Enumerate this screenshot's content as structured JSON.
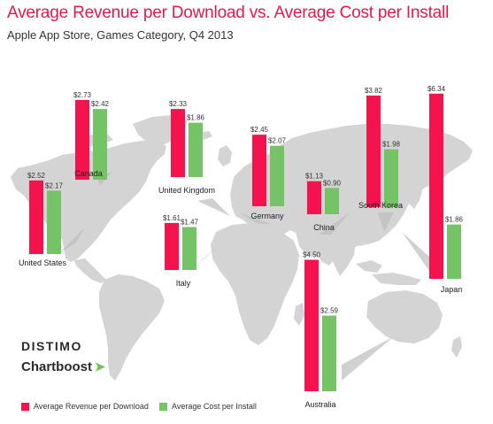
{
  "title": "Average Revenue per Download vs. Average Cost per Install",
  "subtitle": "Apple App Store, Games Category, Q4 2013",
  "colors": {
    "revenue": "#f5134d",
    "cost": "#74c465",
    "map": "#d4d4d4",
    "title": "#e8184a"
  },
  "brands": {
    "distimo": "DISTIMO",
    "chartboost": "Chartboost",
    "chartboost_icon": "leaf-icon"
  },
  "chart_data": {
    "type": "bar",
    "categories": [
      "Canada",
      "United Kingdom",
      "Germany",
      "China",
      "South Korea",
      "Japan",
      "United States",
      "Italy",
      "Australia"
    ],
    "series": [
      {
        "name": "Average Revenue per Download",
        "values": [
          2.73,
          2.33,
          2.45,
          1.13,
          3.82,
          6.34,
          2.52,
          1.61,
          4.5
        ],
        "labels": [
          "$2.73",
          "$2.33",
          "$2.45",
          "$1.13",
          "$3.82",
          "$6.34",
          "$2.52",
          "$1.61",
          "$4.50"
        ]
      },
      {
        "name": "Average Cost per Install",
        "values": [
          2.42,
          1.86,
          2.07,
          0.9,
          1.98,
          1.86,
          2.17,
          1.47,
          2.59
        ],
        "labels": [
          "$2.42",
          "$1.86",
          "$2.07",
          "$0.90",
          "$1.98",
          "$1.86",
          "$2.17",
          "$1.47",
          "$2.59"
        ]
      }
    ],
    "legend": [
      "Average Revenue per Download",
      "Average Cost per Install"
    ],
    "legend_position": "bottom-left"
  }
}
